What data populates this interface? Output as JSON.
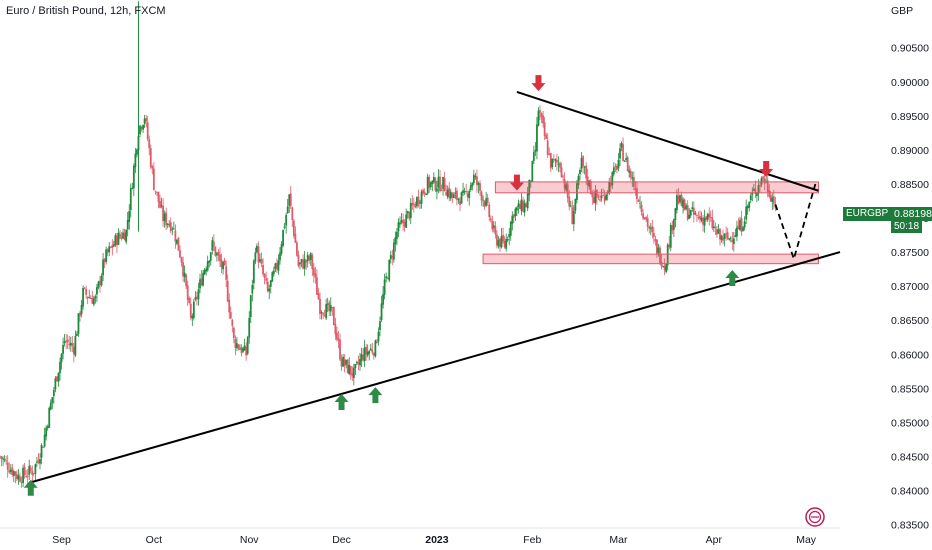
{
  "header": {
    "title": "Euro / British Pound, 12h, FXCM",
    "currency": "GBP"
  },
  "price_tag": {
    "symbol": "EURGBP",
    "price": "0.88198",
    "countdown": "50:18",
    "color": "#1e7a3a"
  },
  "colors": {
    "up": "#1e8a3c",
    "down": "#e05a6a",
    "trendline": "#000000",
    "zone_fill": "rgba(232,87,100,0.30)",
    "zone_stroke": "#e05a6a",
    "arrow_up": "#2e8b45",
    "arrow_down": "#d93040"
  },
  "chart_data": {
    "type": "candlestick",
    "title": "Euro / British Pound, 12h, FXCM",
    "y_axis_label": "GBP",
    "ylim": [
      0.8345,
      0.912
    ],
    "y_ticks": [
      "0.91000",
      "0.90500",
      "0.90000",
      "0.89500",
      "0.89000",
      "0.88500",
      "0.88000",
      "0.87500",
      "0.87000",
      "0.86500",
      "0.86000",
      "0.85500",
      "0.85000",
      "0.84500",
      "0.84000",
      "0.83500"
    ],
    "x_ticks": [
      {
        "label": "Sep",
        "date": "2022-09-01",
        "bold": false
      },
      {
        "label": "Oct",
        "date": "2022-10-01",
        "bold": false
      },
      {
        "label": "Nov",
        "date": "2022-11-01",
        "bold": false
      },
      {
        "label": "Dec",
        "date": "2022-12-01",
        "bold": false
      },
      {
        "label": "2023",
        "date": "2023-01-01",
        "bold": true
      },
      {
        "label": "Feb",
        "date": "2023-02-01",
        "bold": false
      },
      {
        "label": "Mar",
        "date": "2023-03-01",
        "bold": false
      },
      {
        "label": "Apr",
        "date": "2023-04-01",
        "bold": false
      },
      {
        "label": "May",
        "date": "2023-05-01",
        "bold": false
      }
    ],
    "x_range": [
      "2022-08-12",
      "2023-05-12"
    ],
    "close_path": [
      [
        "2022-08-12",
        0.845
      ],
      [
        "2022-08-18",
        0.842
      ],
      [
        "2022-08-23",
        0.843
      ],
      [
        "2022-08-26",
        0.847
      ],
      [
        "2022-08-30",
        0.856
      ],
      [
        "2022-09-02",
        0.862
      ],
      [
        "2022-09-05",
        0.861
      ],
      [
        "2022-09-08",
        0.869
      ],
      [
        "2022-09-12",
        0.868
      ],
      [
        "2022-09-15",
        0.874
      ],
      [
        "2022-09-19",
        0.877
      ],
      [
        "2022-09-22",
        0.878
      ],
      [
        "2022-09-26",
        0.893
      ],
      [
        "2022-09-28",
        0.895
      ],
      [
        "2022-10-01",
        0.885
      ],
      [
        "2022-10-04",
        0.88
      ],
      [
        "2022-10-07",
        0.879
      ],
      [
        "2022-10-10",
        0.874
      ],
      [
        "2022-10-13",
        0.865
      ],
      [
        "2022-10-17",
        0.872
      ],
      [
        "2022-10-20",
        0.876
      ],
      [
        "2022-10-24",
        0.872
      ],
      [
        "2022-10-27",
        0.862
      ],
      [
        "2022-10-31",
        0.86
      ],
      [
        "2022-11-03",
        0.876
      ],
      [
        "2022-11-07",
        0.869
      ],
      [
        "2022-11-10",
        0.873
      ],
      [
        "2022-11-14",
        0.883
      ],
      [
        "2022-11-17",
        0.873
      ],
      [
        "2022-11-21",
        0.874
      ],
      [
        "2022-11-24",
        0.867
      ],
      [
        "2022-11-28",
        0.866
      ],
      [
        "2022-12-01",
        0.859
      ],
      [
        "2022-12-05",
        0.857
      ],
      [
        "2022-12-08",
        0.86
      ],
      [
        "2022-12-12",
        0.861
      ],
      [
        "2022-12-15",
        0.87
      ],
      [
        "2022-12-19",
        0.878
      ],
      [
        "2022-12-22",
        0.88
      ],
      [
        "2022-12-26",
        0.883
      ],
      [
        "2022-12-29",
        0.885
      ],
      [
        "2023-01-03",
        0.885
      ],
      [
        "2023-01-06",
        0.883
      ],
      [
        "2023-01-10",
        0.883
      ],
      [
        "2023-01-13",
        0.886
      ],
      [
        "2023-01-17",
        0.882
      ],
      [
        "2023-01-20",
        0.877
      ],
      [
        "2023-01-23",
        0.876
      ],
      [
        "2023-01-26",
        0.881
      ],
      [
        "2023-01-30",
        0.882
      ],
      [
        "2023-02-02",
        0.89
      ],
      [
        "2023-02-03",
        0.896
      ],
      [
        "2023-02-07",
        0.888
      ],
      [
        "2023-02-10",
        0.888
      ],
      [
        "2023-02-14",
        0.88
      ],
      [
        "2023-02-17",
        0.888
      ],
      [
        "2023-02-21",
        0.883
      ],
      [
        "2023-02-24",
        0.883
      ],
      [
        "2023-02-28",
        0.887
      ],
      [
        "2023-03-02",
        0.89
      ],
      [
        "2023-03-06",
        0.885
      ],
      [
        "2023-03-09",
        0.881
      ],
      [
        "2023-03-13",
        0.876
      ],
      [
        "2023-03-16",
        0.873
      ],
      [
        "2023-03-20",
        0.883
      ],
      [
        "2023-03-23",
        0.881
      ],
      [
        "2023-03-27",
        0.88
      ],
      [
        "2023-03-30",
        0.88
      ],
      [
        "2023-04-03",
        0.877
      ],
      [
        "2023-04-06",
        0.877
      ],
      [
        "2023-04-10",
        0.879
      ],
      [
        "2023-04-13",
        0.883
      ],
      [
        "2023-04-17",
        0.886
      ],
      [
        "2023-04-19",
        0.884
      ],
      [
        "2023-04-21",
        0.882
      ]
    ],
    "zones": [
      {
        "label": "resistance",
        "date_from": "2023-01-20",
        "date_to": "2023-05-05",
        "y_low": 0.8837,
        "y_high": 0.8853
      },
      {
        "label": "support",
        "date_from": "2023-01-16",
        "date_to": "2023-05-05",
        "y_low": 0.8733,
        "y_high": 0.8747
      }
    ],
    "trendlines": [
      {
        "label": "ascending",
        "from": [
          "2022-08-22",
          0.8412
        ],
        "to": [
          "2023-05-12",
          0.875
        ]
      },
      {
        "label": "descending",
        "from": [
          "2023-01-27",
          0.8985
        ],
        "to": [
          "2023-05-05",
          0.884
        ]
      }
    ],
    "projection": [
      [
        "2023-04-21",
        0.882
      ],
      [
        "2023-04-27",
        0.874
      ],
      [
        "2023-05-04",
        0.885
      ]
    ],
    "arrows": [
      {
        "dir": "up",
        "date": "2022-08-22",
        "y": 0.8404
      },
      {
        "dir": "up",
        "date": "2022-12-01",
        "y": 0.853
      },
      {
        "dir": "up",
        "date": "2022-12-12",
        "y": 0.854
      },
      {
        "dir": "down",
        "date": "2023-01-27",
        "y": 0.8852
      },
      {
        "dir": "down",
        "date": "2023-02-03",
        "y": 0.8998
      },
      {
        "dir": "up",
        "date": "2023-04-07",
        "y": 0.8712
      },
      {
        "dir": "down",
        "date": "2023-04-18",
        "y": 0.8872
      }
    ]
  }
}
